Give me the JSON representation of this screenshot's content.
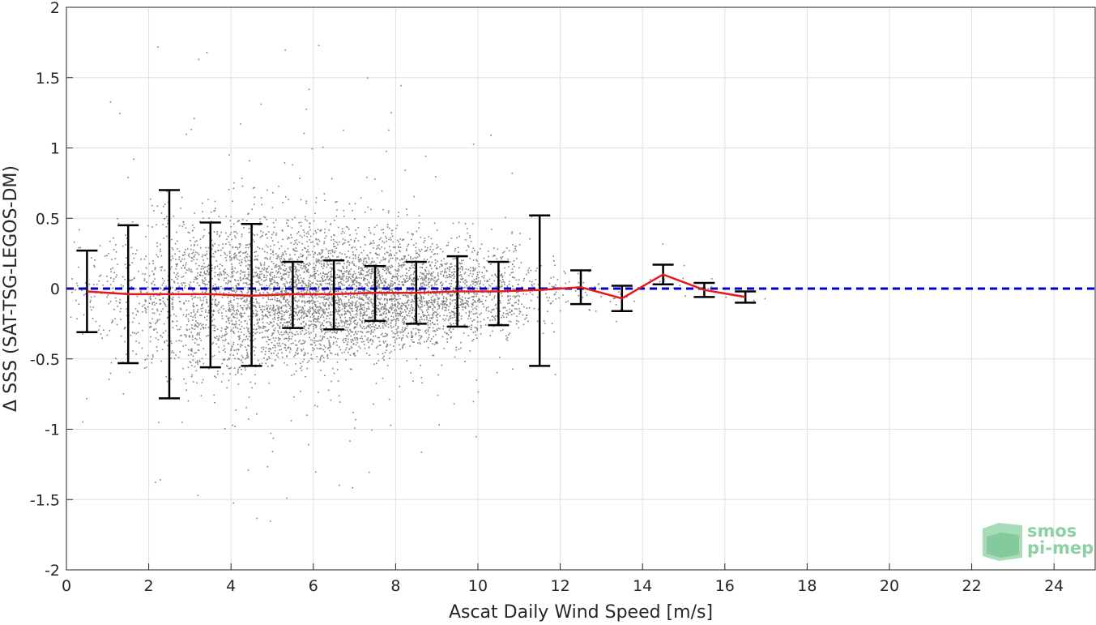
{
  "chart_data": {
    "type": "scatter",
    "xlabel": "Ascat Daily Wind Speed [m/s]",
    "ylabel": "Δ SSS (SAT-TSG-LEGOS-DM)",
    "xlim": [
      0,
      25
    ],
    "ylim": [
      -2,
      2
    ],
    "x_ticks": [
      0,
      2,
      4,
      6,
      8,
      10,
      12,
      14,
      16,
      18,
      20,
      22,
      24
    ],
    "y_ticks": [
      2,
      1.5,
      1,
      0.5,
      0,
      -0.5,
      -1,
      -1.5,
      -2
    ],
    "y_tick_labels": [
      "2",
      "1.5",
      "1",
      "0.5",
      "0",
      "-0.5",
      "-1",
      "-1.5",
      "-2"
    ],
    "grid": true,
    "reference_line": {
      "y": 0,
      "style": "dashed",
      "color": "#0000cc"
    },
    "colors": {
      "scatter": "#808080",
      "mean_line": "#e41a1c",
      "errorbar": "#000000",
      "reference": "#0000cc",
      "grid": "#e0e0e0",
      "logo": "#8fcfa5"
    },
    "series": [
      {
        "type": "errorbar",
        "x": [
          0.5,
          1.5,
          2.5,
          3.5,
          4.5,
          5.5,
          6.5,
          7.5,
          8.5,
          9.5,
          10.5,
          11.5,
          12.5,
          13.5,
          14.5,
          15.5,
          16.5
        ],
        "mean": [
          -0.02,
          -0.04,
          -0.04,
          -0.04,
          -0.05,
          -0.04,
          -0.04,
          -0.03,
          -0.03,
          -0.02,
          -0.02,
          -0.01,
          0.01,
          -0.07,
          0.1,
          -0.01,
          -0.06
        ],
        "upper": [
          0.27,
          0.45,
          0.7,
          0.47,
          0.46,
          0.19,
          0.2,
          0.16,
          0.19,
          0.23,
          0.19,
          0.52,
          0.13,
          0.02,
          0.17,
          0.04,
          -0.02
        ],
        "lower": [
          -0.31,
          -0.53,
          -0.78,
          -0.56,
          -0.55,
          -0.28,
          -0.29,
          -0.23,
          -0.25,
          -0.27,
          -0.26,
          -0.55,
          -0.11,
          -0.16,
          0.03,
          -0.06,
          -0.1
        ]
      },
      {
        "type": "scatter",
        "density": [
          {
            "x": 0.5,
            "spread": 0.18,
            "n": 60
          },
          {
            "x": 1.5,
            "spread": 0.25,
            "n": 160
          },
          {
            "x": 2.5,
            "spread": 0.3,
            "n": 320
          },
          {
            "x": 3.5,
            "spread": 0.3,
            "n": 520
          },
          {
            "x": 4.5,
            "spread": 0.28,
            "n": 700
          },
          {
            "x": 5.5,
            "spread": 0.25,
            "n": 820
          },
          {
            "x": 6.5,
            "spread": 0.24,
            "n": 850
          },
          {
            "x": 7.5,
            "spread": 0.22,
            "n": 800
          },
          {
            "x": 8.5,
            "spread": 0.2,
            "n": 680
          },
          {
            "x": 9.5,
            "spread": 0.18,
            "n": 480
          },
          {
            "x": 10.5,
            "spread": 0.16,
            "n": 260
          },
          {
            "x": 11.5,
            "spread": 0.14,
            "n": 80
          },
          {
            "x": 12.5,
            "spread": 0.1,
            "n": 25
          },
          {
            "x": 13.5,
            "spread": 0.08,
            "n": 12
          },
          {
            "x": 14.5,
            "spread": 0.06,
            "n": 10
          },
          {
            "x": 15.5,
            "spread": 0.05,
            "n": 8
          },
          {
            "x": 16.5,
            "spread": 0.03,
            "n": 4
          }
        ]
      }
    ]
  },
  "logo": {
    "line1": "smos",
    "line2": "pi-mep"
  }
}
